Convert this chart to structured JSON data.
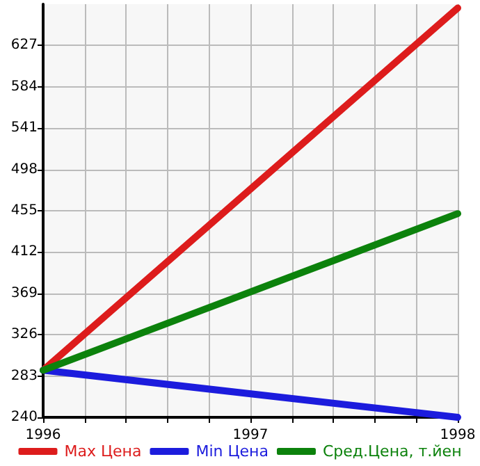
{
  "chart_data": {
    "type": "line",
    "x": [
      1996,
      1998
    ],
    "series": [
      {
        "name": "Max Цена",
        "color": "#dd1c1c",
        "values": [
          289,
          666
        ]
      },
      {
        "name": "Min Цена",
        "color": "#1c1cdd",
        "values": [
          289,
          240
        ]
      },
      {
        "name": "Сред.Цена, т.йен",
        "color": "#0c820c",
        "values": [
          289,
          452
        ]
      }
    ],
    "xlim": [
      1996,
      1998
    ],
    "xticks": [
      1996,
      {
        "value": 1996.2,
        "label": null
      },
      {
        "value": 1996.4,
        "label": null
      },
      {
        "value": 1996.6,
        "label": null
      },
      {
        "value": 1996.8,
        "label": null
      },
      1997,
      {
        "value": 1997.2,
        "label": null
      },
      {
        "value": 1997.4,
        "label": null
      },
      {
        "value": 1997.6,
        "label": null
      },
      {
        "value": 1997.8,
        "label": null
      },
      1998
    ],
    "ylim": [
      240,
      670
    ],
    "yticks": [
      240,
      283,
      326,
      369,
      412,
      455,
      498,
      541,
      584,
      627
    ],
    "grid": true,
    "legend": "bottom",
    "marker": "none",
    "line_style": "solid"
  }
}
